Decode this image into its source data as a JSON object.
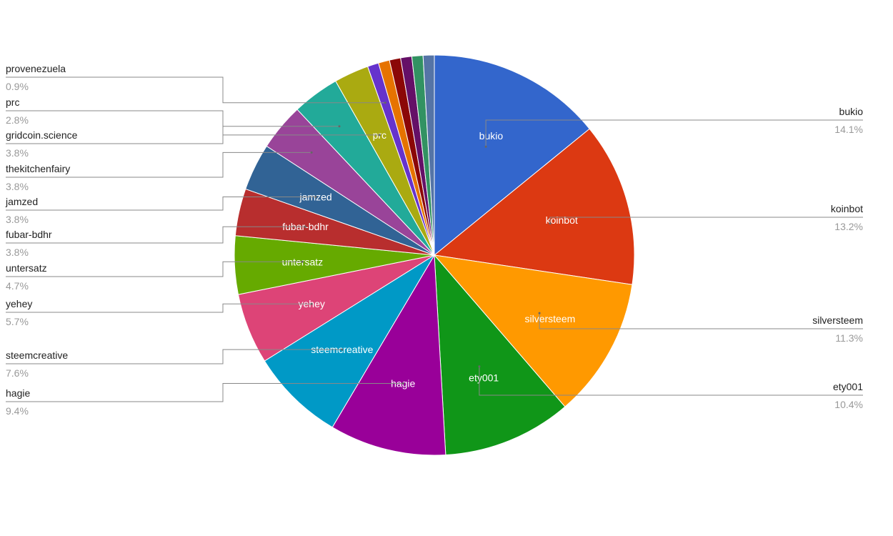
{
  "chart_data": {
    "type": "pie",
    "slices": [
      {
        "label": "bukio",
        "value": 14.1,
        "display": "14.1%",
        "color": "#3366cc",
        "inside_label": true,
        "side": "right"
      },
      {
        "label": "koinbot",
        "value": 13.2,
        "display": "13.2%",
        "color": "#dc3912",
        "inside_label": true,
        "side": "right"
      },
      {
        "label": "silversteem",
        "value": 11.3,
        "display": "11.3%",
        "color": "#ff9900",
        "inside_label": true,
        "side": "right"
      },
      {
        "label": "ety001",
        "value": 10.4,
        "display": "10.4%",
        "color": "#109618",
        "inside_label": true,
        "side": "right"
      },
      {
        "label": "hagie",
        "value": 9.4,
        "display": "9.4%",
        "color": "#990099",
        "inside_label": true,
        "side": "left"
      },
      {
        "label": "steemcreative",
        "value": 7.6,
        "display": "7.6%",
        "color": "#0099c6",
        "inside_label": true,
        "side": "left"
      },
      {
        "label": "yehey",
        "value": 5.7,
        "display": "5.7%",
        "color": "#dd4477",
        "inside_label": true,
        "side": "left"
      },
      {
        "label": "untersatz",
        "value": 4.7,
        "display": "4.7%",
        "color": "#66aa00",
        "inside_label": true,
        "side": "left"
      },
      {
        "label": "fubar-bdhr",
        "value": 3.8,
        "display": "3.8%",
        "color": "#b82e2e",
        "inside_label": true,
        "side": "left"
      },
      {
        "label": "jamzed",
        "value": 3.8,
        "display": "3.8%",
        "color": "#316395",
        "inside_label": true,
        "side": "left"
      },
      {
        "label": "thekitchenfairy",
        "value": 3.8,
        "display": "3.8%",
        "color": "#994499",
        "inside_label": false,
        "side": "left"
      },
      {
        "label": "gridcoin.science",
        "value": 3.8,
        "display": "3.8%",
        "color": "#22aa99",
        "inside_label": false,
        "side": "left"
      },
      {
        "label": "prc",
        "value": 2.8,
        "display": "2.8%",
        "color": "#aaaa11",
        "inside_label": true,
        "side": "left"
      },
      {
        "label": "provenezuela",
        "value": 0.9,
        "display": "0.9%",
        "color": "#6633cc",
        "inside_label": false,
        "side": "left"
      },
      {
        "label": "",
        "value": 0.9,
        "display": "",
        "color": "#e67300",
        "inside_label": false,
        "side": "none"
      },
      {
        "label": "",
        "value": 0.9,
        "display": "",
        "color": "#8b0707",
        "inside_label": false,
        "side": "none"
      },
      {
        "label": "",
        "value": 0.9,
        "display": "",
        "color": "#651067",
        "inside_label": false,
        "side": "none"
      },
      {
        "label": "",
        "value": 0.9,
        "display": "",
        "color": "#329262",
        "inside_label": false,
        "side": "none"
      },
      {
        "label": "",
        "value": 0.9,
        "display": "",
        "color": "#5574a6",
        "inside_label": false,
        "side": "none"
      }
    ],
    "title": "",
    "legend": "leader-lines"
  }
}
